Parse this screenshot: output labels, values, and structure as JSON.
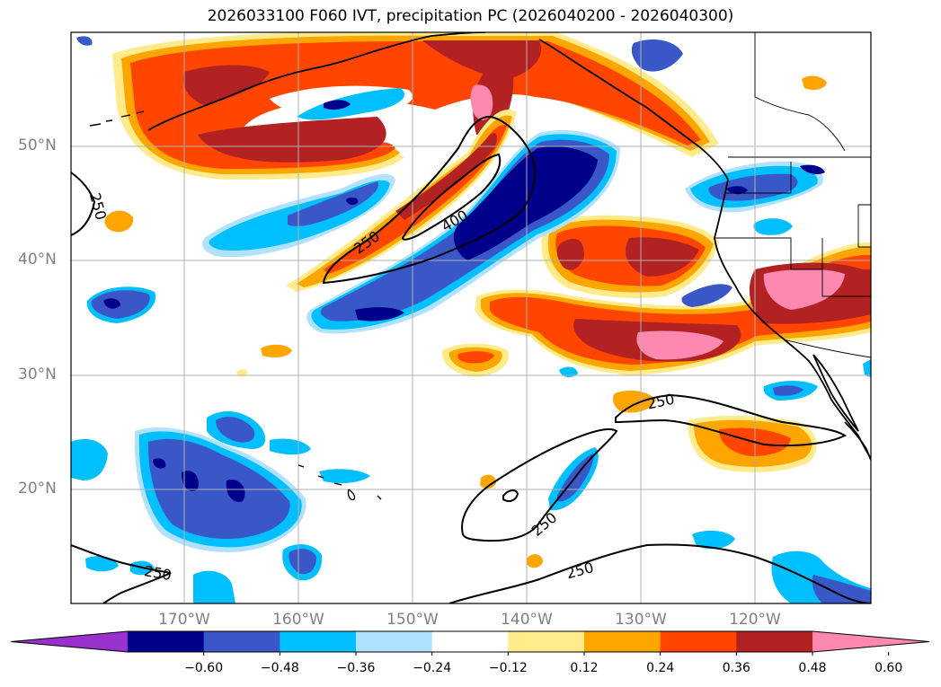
{
  "title": "2026033100 F060 IVT, precipitation PC (2026040200 - 2026040300)",
  "map": {
    "lat_labels": [
      "50°N",
      "40°N",
      "30°N",
      "20°N"
    ],
    "lon_labels": [
      "170°W",
      "160°W",
      "150°W",
      "140°W",
      "130°W",
      "120°W"
    ],
    "contour_labels": [
      "250",
      "250",
      "400",
      "250",
      "250",
      "250",
      "250"
    ]
  },
  "colorbar": {
    "ticks": [
      "−0.60",
      "−0.48",
      "−0.36",
      "−0.24",
      "−0.12",
      "0.12",
      "0.24",
      "0.36",
      "0.48",
      "0.60"
    ],
    "colors": [
      "#9932cc",
      "#00008b",
      "#3a57c8",
      "#00bfff",
      "#b0e2ff",
      "#ffffff",
      "#ffeb8a",
      "#ffa500",
      "#ff4500",
      "#b22222",
      "#ff88b0"
    ]
  }
}
